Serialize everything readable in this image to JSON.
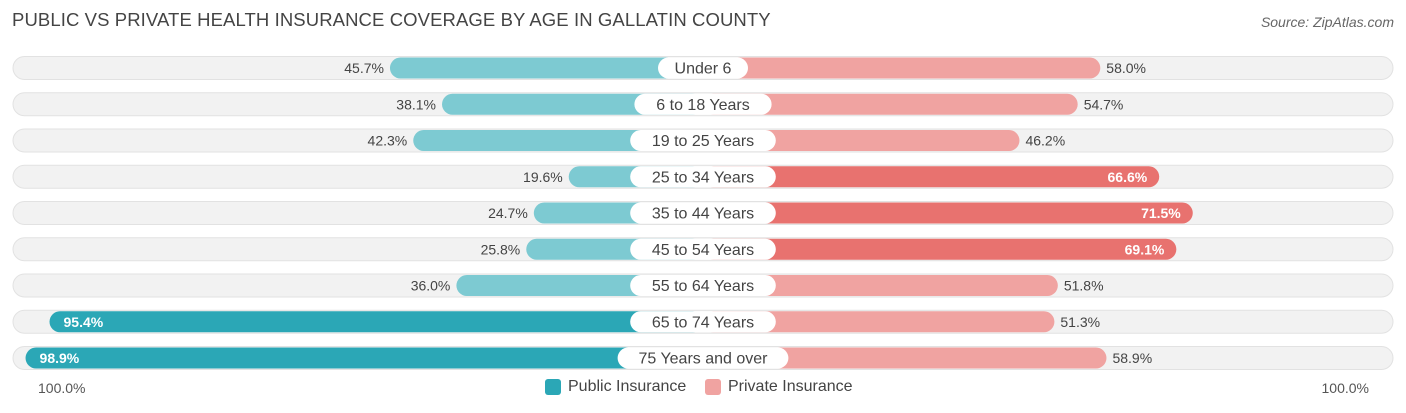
{
  "title": "PUBLIC VS PRIVATE HEALTH INSURANCE COVERAGE BY AGE IN GALLATIN COUNTY",
  "source": "Source: ZipAtlas.com",
  "scale": {
    "left_label": "100.0%",
    "right_label": "100.0%"
  },
  "colors": {
    "public_strong": "#2ba7b6",
    "public_light": "#7dcad2",
    "private_strong": "#e8726f",
    "private_light": "#f0a3a1",
    "row_bg": "#f2f2f2",
    "row_border": "#e2e2e2"
  },
  "chart_data": {
    "type": "bar",
    "orientation": "horizontal-diverging",
    "title": "PUBLIC VS PRIVATE HEALTH INSURANCE COVERAGE BY AGE IN GALLATIN COUNTY",
    "categories": [
      "Under 6",
      "6 to 18 Years",
      "19 to 25 Years",
      "25 to 34 Years",
      "35 to 44 Years",
      "45 to 54 Years",
      "55 to 64 Years",
      "65 to 74 Years",
      "75 Years and over"
    ],
    "series": [
      {
        "name": "Public Insurance",
        "side": "left",
        "values": [
          45.7,
          38.1,
          42.3,
          19.6,
          24.7,
          25.8,
          36.0,
          95.4,
          98.9
        ],
        "labels": [
          "45.7%",
          "38.1%",
          "42.3%",
          "19.6%",
          "24.7%",
          "25.8%",
          "36.0%",
          "95.4%",
          "98.9%"
        ]
      },
      {
        "name": "Private Insurance",
        "side": "right",
        "values": [
          58.0,
          54.7,
          46.2,
          66.6,
          71.5,
          69.1,
          51.8,
          51.3,
          58.9
        ],
        "labels": [
          "58.0%",
          "54.7%",
          "46.2%",
          "66.6%",
          "71.5%",
          "69.1%",
          "51.8%",
          "51.3%",
          "58.9%"
        ]
      }
    ],
    "xlim": [
      0,
      100
    ],
    "xlabel": "",
    "ylabel": "",
    "legend": "bottom-center"
  }
}
